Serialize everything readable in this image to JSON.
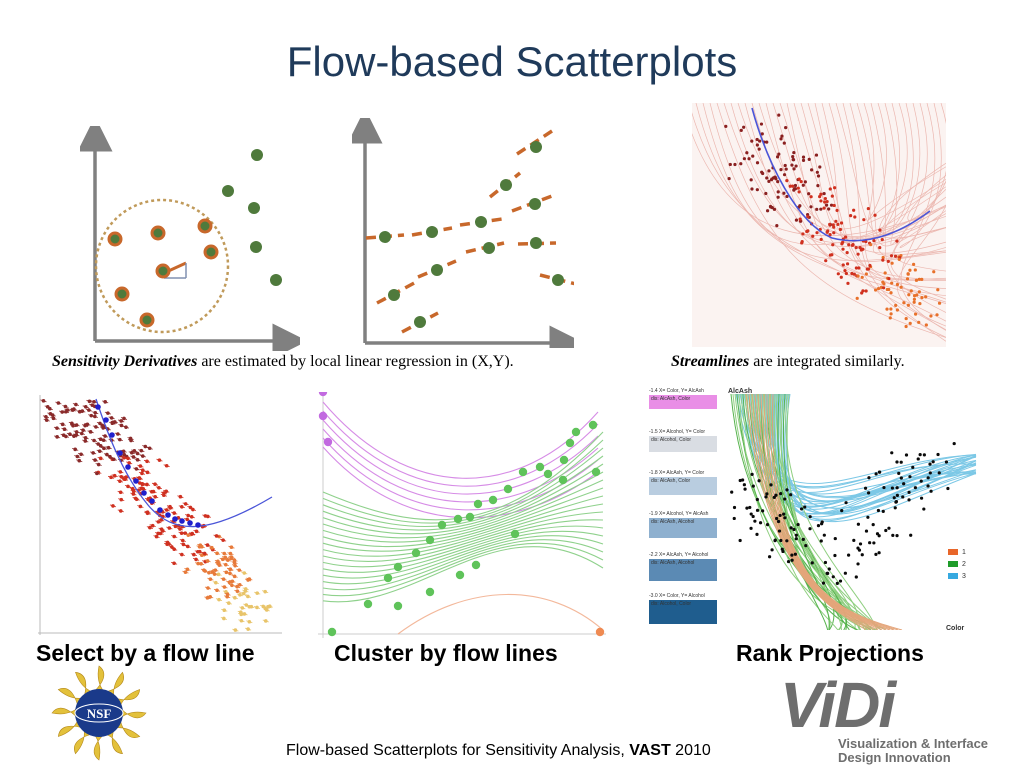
{
  "title": "Flow-based Scatterplots",
  "captions": {
    "sensitivity_bold": "Sensitivity Derivatives",
    "sensitivity_rest": " are estimated by local linear regression in (X,Y).",
    "streamlines_bold": "Streamlines",
    "streamlines_rest": " are integrated similarly."
  },
  "subtitles": {
    "select": "Select by a flow line",
    "cluster": "Cluster by flow lines",
    "rank": "Rank Projections"
  },
  "footer": {
    "text": "Flow-based Scatterplots for Sensitivity Analysis, ",
    "bold": "VAST",
    "year": " 2010"
  },
  "logos": {
    "nsf": "NSF",
    "vidi_word": "ViDi",
    "vidi_line1": "Visualization & Interface",
    "vidi_line2": "Design Innovation"
  },
  "rank_panel": {
    "header": "AlcAsh",
    "axis_label": "Color",
    "items": [
      {
        "line1": "-1.4 X= Color, Y= AlcAsh",
        "line2": "dis: AlcAsh, Color",
        "color": "#e98ee6"
      },
      {
        "line1": "-1.5 X= Alcohol, Y= Color",
        "line2": "dis: Alcohol, Color",
        "color": "#d9dde3"
      },
      {
        "line1": "-1.8 X= AlcAsh, Y= Color",
        "line2": "dis: AlcAsh, Color",
        "color": "#b9cde0"
      },
      {
        "line1": "-1.9 X= Alcohol, Y= AlcAsh",
        "line2": "dis: AlcAsh, Alcohol",
        "color": "#8eb0cf"
      },
      {
        "line1": "-2.2 X= AlcAsh, Y= Alcohol",
        "line2": "dis: AlcAsh, Alcohol",
        "color": "#5b8ab4"
      },
      {
        "line1": "-3.0 X= Color, Y= Alcohol",
        "line2": "dis: Alcohol, Color",
        "color": "#1f5d8e"
      }
    ],
    "legend": [
      {
        "label": "1",
        "color": "#e8662a"
      },
      {
        "label": "2",
        "color": "#1f9c2a"
      },
      {
        "label": "3",
        "color": "#36a9e0"
      }
    ]
  },
  "colors": {
    "title": "#1f3a5a",
    "point_fill": "#4f7a3c",
    "point_ring": "#c8682b",
    "tangent": "#c8682b",
    "axis": "#808080"
  }
}
